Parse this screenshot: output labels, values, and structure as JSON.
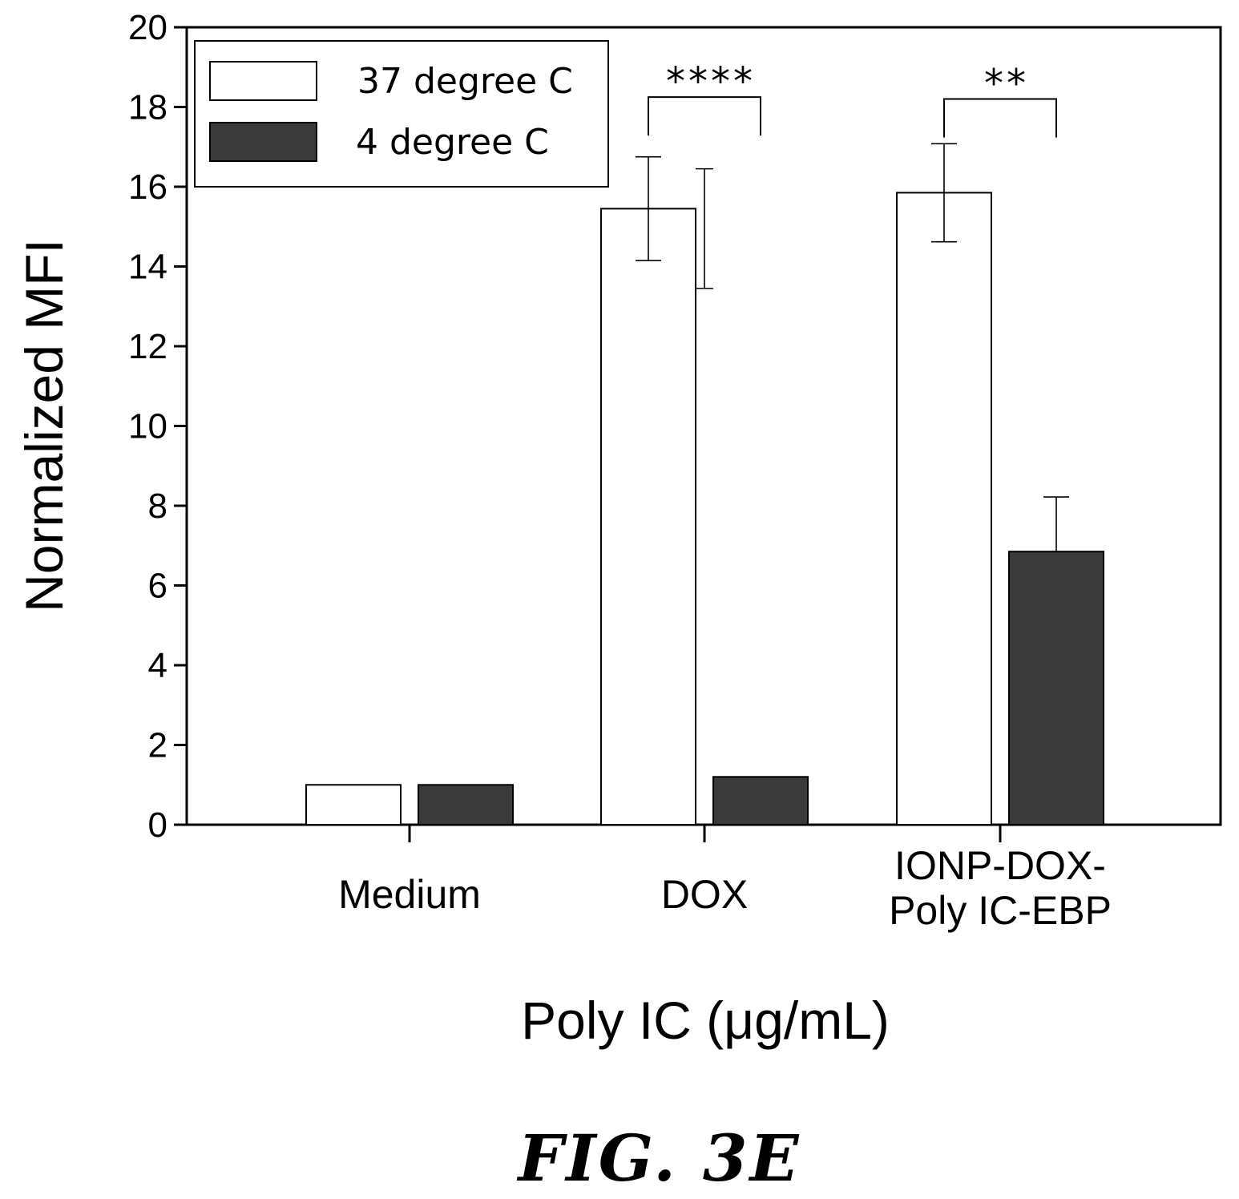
{
  "chart_data": {
    "type": "bar",
    "categories": [
      "Medium",
      "DOX",
      "IONP-DOX-Poly IC-EBP"
    ],
    "category_lines": [
      [
        "Medium"
      ],
      [
        "DOX"
      ],
      [
        "IONP-DOX-",
        "Poly IC-EBP"
      ]
    ],
    "series": [
      {
        "name": "37 degree C",
        "values": [
          1.0,
          15.45,
          15.85
        ],
        "errors": [
          0,
          1.3,
          1.23
        ],
        "fill": "#ffffff"
      },
      {
        "name": "4 degree C",
        "values": [
          1.0,
          1.2,
          6.85
        ],
        "errors": [
          0,
          0,
          1.37
        ],
        "fill": "#3a3a3a"
      }
    ],
    "extra_error_bars": [
      {
        "category_index": 1,
        "center": 14.95,
        "error": 1.5
      }
    ],
    "xlabel": "Poly IC (μg/mL)",
    "ylabel": "Normalized MFI",
    "ylim": [
      0,
      20
    ],
    "yticks": [
      0,
      2,
      4,
      6,
      8,
      10,
      12,
      14,
      16,
      18,
      20
    ],
    "legend_position": "top-left",
    "grid": false,
    "significance": [
      {
        "category_index": 1,
        "label": "****",
        "y": 18.25
      },
      {
        "category_index": 2,
        "label": "**",
        "y": 18.2
      }
    ]
  },
  "figure": {
    "caption": "FIG. 3E"
  }
}
